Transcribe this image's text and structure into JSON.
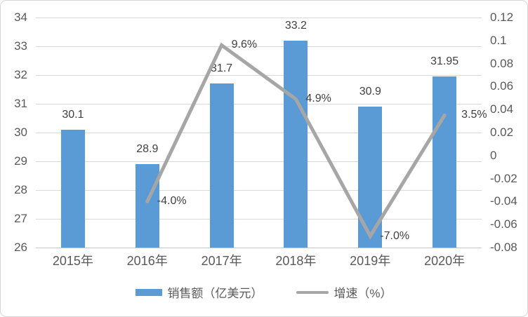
{
  "chart_data": {
    "type": "bar",
    "subtype": "combo-bar-line",
    "categories": [
      "2015年",
      "2016年",
      "2017年",
      "2018年",
      "2019年",
      "2020年"
    ],
    "series": [
      {
        "name": "销售额（亿美元）",
        "type": "bar",
        "axis": "left",
        "color": "#5b9bd5",
        "values": [
          30.1,
          28.9,
          31.7,
          33.2,
          30.9,
          31.95
        ],
        "labels": [
          "30.1",
          "28.9",
          "31.7",
          "33.2",
          "30.9",
          "31.95"
        ]
      },
      {
        "name": "增速（%）",
        "type": "line",
        "axis": "right",
        "color": "#a6a6a6",
        "values": [
          null,
          -0.04,
          0.096,
          0.049,
          -0.07,
          0.035
        ],
        "labels": [
          "",
          "-4.0%",
          "9.6%",
          "4.9%",
          "-7.0%",
          "3.5%"
        ]
      }
    ],
    "left_axis": {
      "min": 26,
      "max": 34,
      "step": 1,
      "ticks": [
        "34",
        "33",
        "32",
        "31",
        "30",
        "29",
        "28",
        "27",
        "26"
      ]
    },
    "right_axis": {
      "min": -0.08,
      "max": 0.12,
      "step": 0.02,
      "ticks": [
        "0.12",
        "0.1",
        "0.08",
        "0.06",
        "0.04",
        "0.02",
        "0",
        "-0.02",
        "-0.04",
        "-0.06",
        "-0.08"
      ]
    },
    "grid": true,
    "legend_position": "bottom",
    "title": ""
  },
  "colors": {
    "bar": "#5b9bd5",
    "line": "#a6a6a6",
    "gridline": "#d9d9d9",
    "axis_text": "#595959",
    "data_label": "#404040",
    "border": "#d6d6d6",
    "background": "#ffffff"
  }
}
